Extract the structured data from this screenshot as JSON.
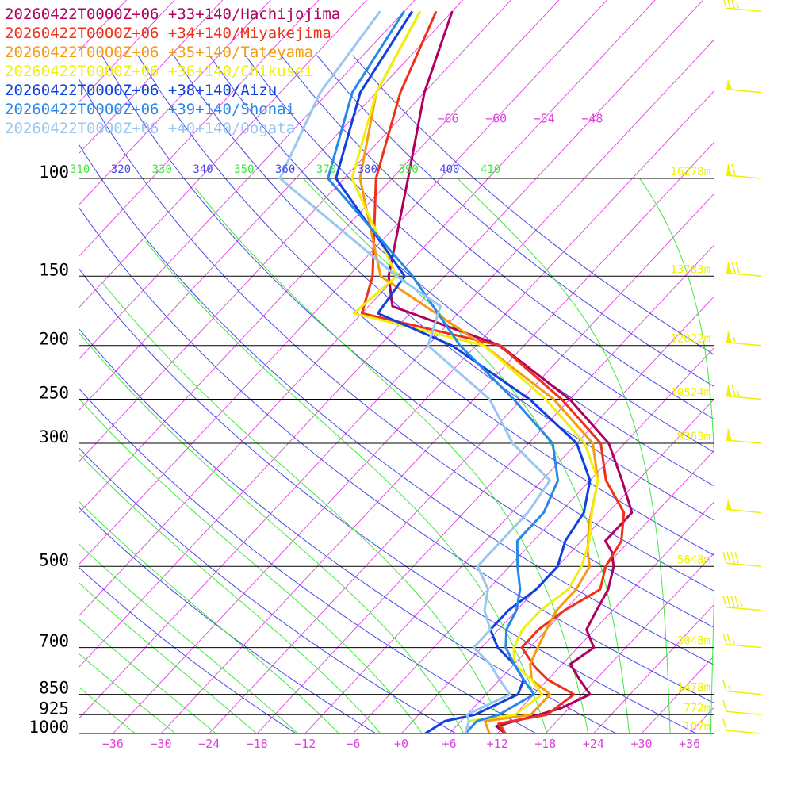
{
  "colors": {
    "isobar": "#000000",
    "isotherm": "#e040e0",
    "dry_adiabat": "#4848e8",
    "moist_adiabat": "#40e840",
    "height_label": "#f0f000",
    "wind_barb": "#f0f000"
  },
  "chart_data": {
    "type": "line",
    "title": "",
    "xlabel": "",
    "ylabel": "",
    "xlim": [
      -40,
      40
    ],
    "pressure_range": [
      1000,
      100
    ],
    "log_pressure_axis": true,
    "skew": true,
    "pressure_levels": [
      100,
      150,
      200,
      250,
      300,
      500,
      700,
      850,
      925,
      1000
    ],
    "pressure_tick_labels": [
      "100",
      "150",
      "200",
      "250",
      "300",
      "500",
      "700",
      "850",
      "925",
      "1000"
    ],
    "temperature_ticks": [
      -36,
      -30,
      -24,
      -18,
      -12,
      -6,
      0,
      6,
      12,
      18,
      24,
      30,
      36
    ],
    "temperature_tick_labels": [
      "−36",
      "−30",
      "−24",
      "−18",
      "−12",
      "−6",
      "+0",
      "+6",
      "+12",
      "+18",
      "+24",
      "+30",
      "+36"
    ],
    "upper_isotherm_labels": [
      {
        "t": -66,
        "label": "−66"
      },
      {
        "t": -60,
        "label": "−60"
      },
      {
        "t": -54,
        "label": "−54"
      },
      {
        "t": -48,
        "label": "−48"
      }
    ],
    "theta_labels": [
      {
        "value": "310",
        "kind": "moist"
      },
      {
        "value": "320",
        "kind": "dry"
      },
      {
        "value": "330",
        "kind": "moist"
      },
      {
        "value": "340",
        "kind": "dry"
      },
      {
        "value": "350",
        "kind": "moist"
      },
      {
        "value": "360",
        "kind": "dry"
      },
      {
        "value": "370",
        "kind": "moist"
      },
      {
        "value": "380",
        "kind": "dry"
      },
      {
        "value": "390",
        "kind": "moist"
      },
      {
        "value": "400",
        "kind": "dry"
      },
      {
        "value": "410",
        "kind": "moist"
      }
    ],
    "height_labels": [
      {
        "p": 100,
        "label": "16278m"
      },
      {
        "p": 150,
        "label": "13783m"
      },
      {
        "p": 200,
        "label": "12022m"
      },
      {
        "p": 250,
        "label": "10524m"
      },
      {
        "p": 300,
        "label": "9363m"
      },
      {
        "p": 500,
        "label": "5648m"
      },
      {
        "p": 700,
        "label": "3048m"
      },
      {
        "p": 850,
        "label": "1478m"
      },
      {
        "p": 925,
        "label": "772m"
      },
      {
        "p": 1000,
        "label": "107m"
      }
    ],
    "series": [
      {
        "name": "20260422T0000Z+06 +33+140/Hachijojima",
        "color": "#b0005e",
        "points": [
          [
            1000,
            13
          ],
          [
            970,
            11
          ],
          [
            925,
            15
          ],
          [
            900,
            17
          ],
          [
            850,
            19
          ],
          [
            800,
            16
          ],
          [
            750,
            13
          ],
          [
            700,
            14
          ],
          [
            650,
            11
          ],
          [
            600,
            10
          ],
          [
            550,
            9
          ],
          [
            500,
            7
          ],
          [
            470,
            5
          ],
          [
            450,
            3
          ],
          [
            400,
            3
          ],
          [
            350,
            -2
          ],
          [
            300,
            -8
          ],
          [
            250,
            -18
          ],
          [
            200,
            -33
          ],
          [
            170,
            -51
          ],
          [
            150,
            -55
          ],
          [
            100,
            -64
          ],
          [
            70,
            -72
          ],
          [
            50,
            -78
          ]
        ]
      },
      {
        "name": "20260422T0000Z+06 +34+140/Miyakejima",
        "color": "#f03018",
        "points": [
          [
            1000,
            13
          ],
          [
            960,
            11
          ],
          [
            925,
            16
          ],
          [
            850,
            17
          ],
          [
            800,
            12
          ],
          [
            760,
            9
          ],
          [
            700,
            5
          ],
          [
            650,
            5
          ],
          [
            600,
            6
          ],
          [
            550,
            8
          ],
          [
            500,
            6
          ],
          [
            450,
            5
          ],
          [
            400,
            2
          ],
          [
            350,
            -4
          ],
          [
            300,
            -9
          ],
          [
            250,
            -19
          ],
          [
            200,
            -33
          ],
          [
            175,
            -54
          ],
          [
            150,
            -57
          ],
          [
            100,
            -68
          ],
          [
            70,
            -75
          ],
          [
            50,
            -80
          ]
        ]
      },
      {
        "name": "20260422T0000Z+06 +35+140/Tateyama",
        "color": "#f89a10",
        "points": [
          [
            1000,
            11
          ],
          [
            950,
            9
          ],
          [
            925,
            14
          ],
          [
            850,
            14
          ],
          [
            800,
            10
          ],
          [
            750,
            8
          ],
          [
            700,
            7
          ],
          [
            650,
            6
          ],
          [
            600,
            5
          ],
          [
            550,
            5
          ],
          [
            500,
            4
          ],
          [
            470,
            2
          ],
          [
            420,
            -1
          ],
          [
            350,
            -5
          ],
          [
            300,
            -10
          ],
          [
            250,
            -20
          ],
          [
            200,
            -35
          ],
          [
            150,
            -56
          ],
          [
            100,
            -70
          ],
          [
            70,
            -78
          ],
          [
            50,
            -82
          ]
        ]
      },
      {
        "name": "20260422T0000Z+06 +36+140/Chikusei",
        "color": "#f0f010",
        "points": [
          [
            1000,
            8
          ],
          [
            950,
            7
          ],
          [
            925,
            12
          ],
          [
            850,
            13
          ],
          [
            800,
            10
          ],
          [
            750,
            6
          ],
          [
            700,
            4
          ],
          [
            650,
            3
          ],
          [
            600,
            3
          ],
          [
            550,
            4
          ],
          [
            500,
            3
          ],
          [
            450,
            1
          ],
          [
            400,
            -2
          ],
          [
            350,
            -5
          ],
          [
            300,
            -11
          ],
          [
            250,
            -21
          ],
          [
            200,
            -35
          ],
          [
            175,
            -55
          ],
          [
            150,
            -54
          ],
          [
            100,
            -71
          ],
          [
            70,
            -78
          ],
          [
            50,
            -82
          ]
        ]
      },
      {
        "name": "20260422T0000Z+06 +38+140/Aizu",
        "color": "#1040e0",
        "points": [
          [
            1000,
            3
          ],
          [
            950,
            4
          ],
          [
            925,
            7
          ],
          [
            850,
            10
          ],
          [
            800,
            9
          ],
          [
            750,
            6
          ],
          [
            700,
            2
          ],
          [
            650,
            -1
          ],
          [
            600,
            -1
          ],
          [
            550,
            0
          ],
          [
            500,
            0
          ],
          [
            450,
            -2
          ],
          [
            400,
            -3
          ],
          [
            350,
            -6
          ],
          [
            300,
            -12
          ],
          [
            250,
            -23
          ],
          [
            200,
            -39
          ],
          [
            175,
            -52
          ],
          [
            150,
            -53
          ],
          [
            100,
            -73
          ],
          [
            70,
            -80
          ],
          [
            50,
            -83
          ]
        ]
      },
      {
        "name": "20260422T0000Z+06 +39+140/Shonai",
        "color": "#2888e8",
        "points": [
          [
            1000,
            8
          ],
          [
            950,
            8
          ],
          [
            925,
            10
          ],
          [
            850,
            12
          ],
          [
            800,
            9
          ],
          [
            750,
            6
          ],
          [
            700,
            3
          ],
          [
            650,
            1
          ],
          [
            600,
            0
          ],
          [
            550,
            -2
          ],
          [
            500,
            -5
          ],
          [
            450,
            -8
          ],
          [
            400,
            -8
          ],
          [
            350,
            -10
          ],
          [
            300,
            -15
          ],
          [
            250,
            -25
          ],
          [
            200,
            -38
          ],
          [
            150,
            -52
          ],
          [
            100,
            -74
          ],
          [
            70,
            -81
          ],
          [
            50,
            -84
          ]
        ]
      },
      {
        "name": "20260422T0000Z+06 +40+140/Oogata",
        "color": "#98c8f0",
        "points": [
          [
            1000,
            8
          ],
          [
            950,
            7
          ],
          [
            925,
            6
          ],
          [
            850,
            9
          ],
          [
            800,
            6
          ],
          [
            750,
            3
          ],
          [
            700,
            -1
          ],
          [
            650,
            -1
          ],
          [
            600,
            -4
          ],
          [
            550,
            -6
          ],
          [
            500,
            -10
          ],
          [
            450,
            -10
          ],
          [
            400,
            -10
          ],
          [
            350,
            -11
          ],
          [
            300,
            -20
          ],
          [
            250,
            -28
          ],
          [
            200,
            -42
          ],
          [
            170,
            -45
          ],
          [
            150,
            -54
          ],
          [
            100,
            -80
          ],
          [
            70,
            -85
          ],
          [
            50,
            -87
          ]
        ]
      }
    ],
    "wind_barbs_kt": [
      {
        "p": 50,
        "speed": 35
      },
      {
        "p": 70,
        "speed": 55
      },
      {
        "p": 100,
        "speed": 70
      },
      {
        "p": 150,
        "speed": 80
      },
      {
        "p": 200,
        "speed": 65
      },
      {
        "p": 250,
        "speed": 75
      },
      {
        "p": 300,
        "speed": 60
      },
      {
        "p": 400,
        "speed": 55
      },
      {
        "p": 500,
        "speed": 40
      },
      {
        "p": 600,
        "speed": 45
      },
      {
        "p": 700,
        "speed": 25
      },
      {
        "p": 850,
        "speed": 15
      },
      {
        "p": 925,
        "speed": 10
      },
      {
        "p": 1000,
        "speed": 10
      }
    ]
  }
}
